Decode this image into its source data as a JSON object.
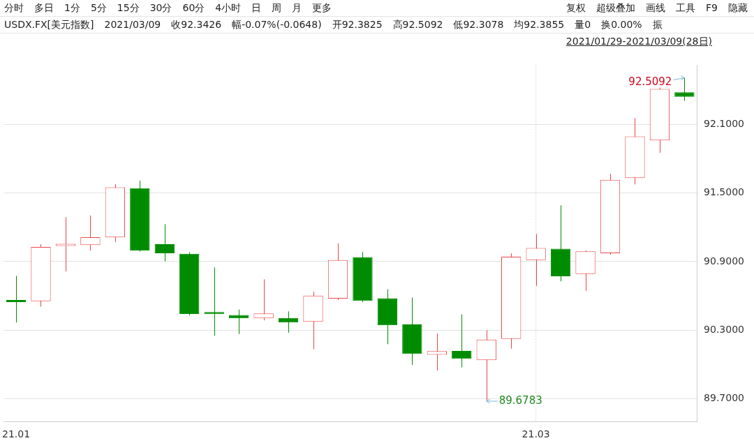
{
  "chart_data": {
    "type": "candlestick",
    "title": "USDX.FX[美元指数]",
    "subtitle": "2021/01/29-2021/03/09(28日)",
    "annotations": [
      "分时 多日 1分 5分 15分 30分 60分 4小时 日 周 月 更多",
      "复权 超级叠加 画线 工具 F9 隐藏",
      "2021/03/09 收92.3426 幅-0.07%(-0.0648) 开92.3825 高92.5092 低92.3078 均92.3855 量0 换0.00% 振",
      "92.5092",
      "89.6783"
    ],
    "categories": [
      "21.01",
      null,
      null,
      null,
      null,
      null,
      null,
      null,
      null,
      null,
      null,
      null,
      null,
      null,
      null,
      null,
      null,
      null,
      null,
      null,
      null,
      "21.03",
      null,
      null,
      null,
      null,
      null,
      null
    ],
    "ohlc": [
      [
        90.548,
        90.775,
        90.367,
        90.545
      ],
      [
        90.553,
        91.053,
        90.505,
        91.029
      ],
      [
        91.037,
        91.29,
        90.813,
        91.041
      ],
      [
        91.045,
        91.304,
        90.997,
        91.114
      ],
      [
        91.112,
        91.578,
        91.071,
        91.551
      ],
      [
        91.543,
        91.61,
        90.988,
        90.997
      ],
      [
        91.053,
        91.228,
        90.902,
        90.974
      ],
      [
        90.968,
        90.982,
        90.428,
        90.442
      ],
      [
        90.448,
        90.849,
        90.253,
        90.44
      ],
      [
        90.432,
        90.48,
        90.266,
        90.404
      ],
      [
        90.404,
        90.745,
        90.385,
        90.446
      ],
      [
        90.407,
        90.464,
        90.278,
        90.367
      ],
      [
        90.373,
        90.636,
        90.132,
        90.602
      ],
      [
        90.576,
        91.059,
        90.564,
        90.914
      ],
      [
        90.94,
        90.984,
        90.545,
        90.557
      ],
      [
        90.579,
        90.658,
        90.177,
        90.343
      ],
      [
        90.351,
        90.585,
        89.995,
        90.092
      ],
      [
        90.084,
        90.27,
        89.946,
        90.116
      ],
      [
        90.118,
        90.438,
        89.974,
        90.049
      ],
      [
        90.037,
        90.3,
        89.6783,
        90.217
      ],
      [
        90.223,
        90.973,
        90.138,
        90.942
      ],
      [
        90.914,
        91.142,
        90.687,
        91.019
      ],
      [
        91.013,
        91.393,
        90.727,
        90.772
      ],
      [
        90.792,
        90.997,
        90.644,
        90.99
      ],
      [
        90.974,
        91.67,
        90.962,
        91.616
      ],
      [
        91.632,
        92.156,
        91.576,
        91.996
      ],
      [
        91.962,
        92.423,
        91.853,
        92.411
      ],
      [
        92.3825,
        92.5092,
        92.3078,
        92.3426
      ]
    ],
    "colors": [
      "#008c00",
      "#e8474a",
      "#e8474a",
      "#e8474a",
      "#e8474a",
      "#008c00",
      "#008c00",
      "#008c00",
      "#008c00",
      "#008c00",
      "#e8474a",
      "#008c00",
      "#e8474a",
      "#e8474a",
      "#008c00",
      "#008c00",
      "#008c00",
      "#e8474a",
      "#008c00",
      "#e8474a",
      "#e8474a",
      "#e8474a",
      "#008c00",
      "#e8474a",
      "#e8474a",
      "#e8474a",
      "#e8474a",
      "#008c00"
    ],
    "ylim": [
      89.5,
      92.62
    ],
    "yticks": [
      {
        "value": 89.7,
        "label": "89.7000"
      },
      {
        "value": 90.3,
        "label": "90.3000"
      },
      {
        "value": 90.9,
        "label": "90.9000"
      },
      {
        "value": 91.5,
        "label": "91.5000"
      },
      {
        "value": 92.1,
        "label": "92.1000"
      }
    ],
    "ref_lines": [
      {
        "axis": "x",
        "value": "21.03"
      }
    ],
    "grid": "y",
    "legend": false
  }
}
